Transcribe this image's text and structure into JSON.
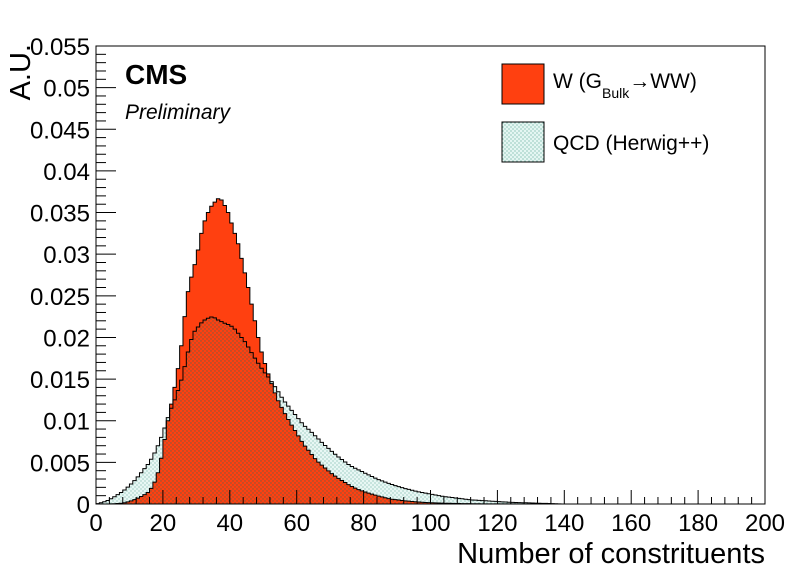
{
  "chart_data": {
    "type": "area",
    "xlabel": "Number of constrituents",
    "ylabel": "A.U.",
    "xlim": [
      0,
      200
    ],
    "ylim": [
      0,
      0.055
    ],
    "x_ticks": [
      0,
      20,
      40,
      60,
      80,
      100,
      120,
      140,
      160,
      180,
      200
    ],
    "y_ticks": [
      0,
      0.005,
      0.01,
      0.015,
      0.02,
      0.025,
      0.03,
      0.035,
      0.04,
      0.045,
      0.05,
      0.055
    ],
    "x_tick_labels": [
      "0",
      "20",
      "40",
      "60",
      "80",
      "100",
      "120",
      "140",
      "160",
      "180",
      "200"
    ],
    "y_tick_labels": [
      "0",
      "0.005",
      "0.01",
      "0.015",
      "0.02",
      "0.025",
      "0.03",
      "0.035",
      "0.04",
      "0.045",
      "0.05",
      "0.055"
    ],
    "cms_label": "CMS",
    "cms_sublabel": "Preliminary",
    "legend_position": "top-right",
    "bin_width": 1,
    "series": [
      {
        "name_main": "W (G",
        "name_sub": "Bulk",
        "name_end": "→WW)",
        "color": "#ff4010",
        "style": "filled",
        "x": [
          0,
          4,
          8,
          10,
          12,
          14,
          16,
          18,
          19,
          20,
          21,
          22,
          23,
          24,
          25,
          26,
          27,
          28,
          29,
          30,
          31,
          32,
          33,
          34,
          35,
          36,
          37,
          38,
          39,
          40,
          41,
          42,
          43,
          44,
          45,
          46,
          47,
          48,
          49,
          50,
          52,
          54,
          56,
          58,
          60,
          62,
          64,
          66,
          68,
          70,
          72,
          74,
          76,
          78,
          80,
          84,
          88,
          92,
          96,
          100,
          104,
          108,
          112,
          116,
          120,
          124,
          128,
          132,
          136
        ],
        "values": [
          0,
          0,
          0.0001,
          0.0003,
          0.0006,
          0.001,
          0.0015,
          0.003,
          0.0045,
          0.0065,
          0.009,
          0.011,
          0.013,
          0.015,
          0.0175,
          0.0205,
          0.0245,
          0.0265,
          0.028,
          0.0295,
          0.0315,
          0.0335,
          0.0345,
          0.0355,
          0.036,
          0.0365,
          0.0368,
          0.0362,
          0.0355,
          0.0345,
          0.033,
          0.032,
          0.0305,
          0.0285,
          0.027,
          0.025,
          0.023,
          0.021,
          0.019,
          0.0175,
          0.015,
          0.0128,
          0.0112,
          0.0098,
          0.0085,
          0.0072,
          0.0062,
          0.0052,
          0.0045,
          0.0038,
          0.0032,
          0.0027,
          0.0022,
          0.0018,
          0.0015,
          0.001,
          0.0006,
          0.0004,
          0.00025,
          0.00015,
          0.0001,
          6e-05,
          4e-05,
          2e-05,
          1e-05,
          1e-05,
          5e-06,
          3e-06,
          0
        ]
      },
      {
        "name": "QCD (Herwig++)",
        "color": "#dff5f0",
        "style": "hatched",
        "x": [
          0,
          2,
          4,
          6,
          8,
          10,
          12,
          14,
          16,
          18,
          20,
          22,
          24,
          26,
          27,
          28,
          29,
          30,
          31,
          32,
          33,
          34,
          35,
          36,
          37,
          38,
          39,
          40,
          41,
          42,
          43,
          44,
          45,
          46,
          48,
          50,
          52,
          54,
          56,
          58,
          60,
          62,
          64,
          66,
          68,
          70,
          72,
          74,
          76,
          78,
          80,
          84,
          88,
          92,
          96,
          100,
          104,
          108,
          112,
          116,
          120,
          124,
          128,
          132,
          136,
          140
        ],
        "values": [
          0,
          0.0002,
          0.0005,
          0.001,
          0.0015,
          0.0022,
          0.003,
          0.004,
          0.005,
          0.0065,
          0.0085,
          0.011,
          0.013,
          0.0155,
          0.0175,
          0.019,
          0.0205,
          0.021,
          0.0215,
          0.022,
          0.0222,
          0.0224,
          0.0225,
          0.0222,
          0.022,
          0.0218,
          0.0216,
          0.0215,
          0.0212,
          0.0208,
          0.0202,
          0.0198,
          0.0192,
          0.0185,
          0.0172,
          0.016,
          0.015,
          0.0138,
          0.0125,
          0.0115,
          0.0105,
          0.0095,
          0.0088,
          0.008,
          0.0072,
          0.0065,
          0.0058,
          0.0052,
          0.0046,
          0.0042,
          0.0038,
          0.003,
          0.0024,
          0.0019,
          0.0015,
          0.0012,
          0.0009,
          0.0007,
          0.0005,
          0.0004,
          0.0003,
          0.0002,
          0.00015,
          0.0001,
          5e-05,
          0
        ]
      }
    ]
  }
}
